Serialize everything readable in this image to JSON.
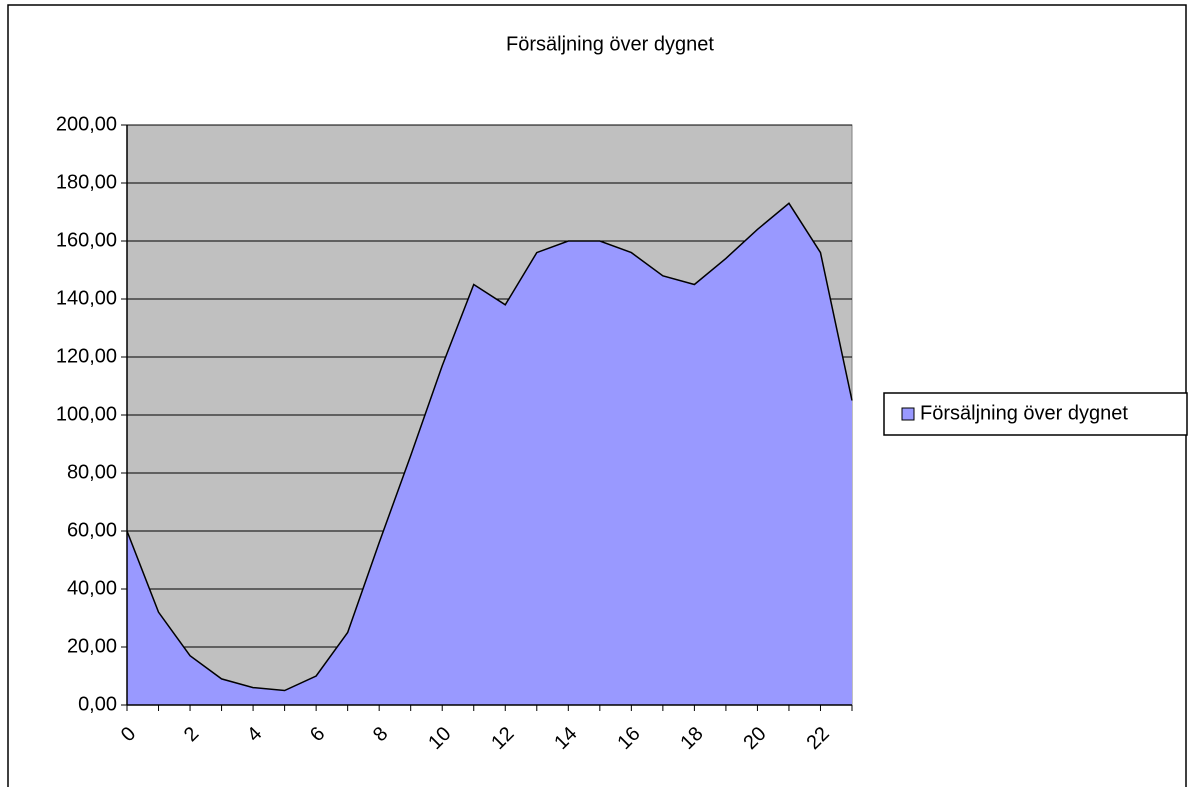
{
  "chart_data": {
    "type": "area",
    "title": "Försäljning över dygnet",
    "categories": [
      "0",
      null,
      "2",
      null,
      "4",
      null,
      "6",
      null,
      "8",
      null,
      "10",
      null,
      "12",
      null,
      "14",
      null,
      "16",
      null,
      "18",
      null,
      "20",
      null,
      "22",
      null
    ],
    "series": [
      {
        "name": "Försäljning över dygnet",
        "color": "#9999ff",
        "values": [
          60,
          32,
          17,
          9,
          6,
          5,
          10,
          25,
          56,
          86,
          117,
          145,
          138,
          156,
          160,
          160,
          156,
          148,
          145,
          154,
          164,
          173,
          156,
          105
        ]
      }
    ],
    "ylim": [
      0,
      200
    ],
    "yticks": [
      {
        "value": 0,
        "label": "0,00"
      },
      {
        "value": 20,
        "label": "20,00"
      },
      {
        "value": 40,
        "label": "40,00"
      },
      {
        "value": 60,
        "label": "60,00"
      },
      {
        "value": 80,
        "label": "80,00"
      },
      {
        "value": 100,
        "label": "100,00"
      },
      {
        "value": 120,
        "label": "120,00"
      },
      {
        "value": 140,
        "label": "140,00"
      },
      {
        "value": 160,
        "label": "160,00"
      },
      {
        "value": 180,
        "label": "180,00"
      },
      {
        "value": 200,
        "label": "200,00"
      }
    ],
    "grid": true,
    "legend": "right"
  }
}
